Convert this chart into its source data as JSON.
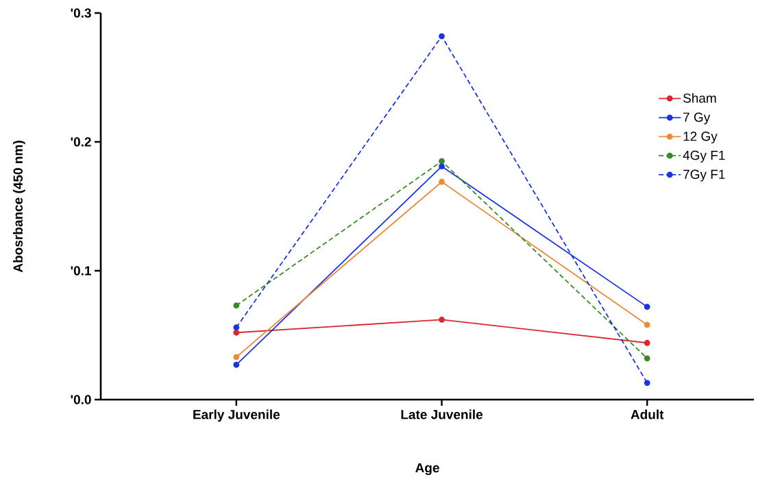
{
  "chart_data": {
    "type": "line",
    "xlabel": "Age",
    "ylabel": "Abosrbance (450 nm)",
    "categories": [
      "Early Juvenile",
      "Late Juvenile",
      "Adult"
    ],
    "ylim": [
      0,
      0.3
    ],
    "yticks": [
      {
        "value": 0.0,
        "label": "'0.0"
      },
      {
        "value": 0.1,
        "label": "'0.1"
      },
      {
        "value": 0.2,
        "label": "'0.2"
      },
      {
        "value": 0.3,
        "label": "'0.3"
      }
    ],
    "grid": false,
    "legend": "right",
    "marker": "circle",
    "series": [
      {
        "name": "Sham",
        "color": "#d9282f",
        "line_style": "solid",
        "values": [
          0.052,
          0.062,
          0.044
        ]
      },
      {
        "name": "7 Gy",
        "color": "#1a35e0",
        "line_style": "solid",
        "values": [
          0.027,
          0.181,
          0.072
        ]
      },
      {
        "name": "12 Gy",
        "color": "#ec8a3c",
        "line_style": "solid",
        "values": [
          0.033,
          0.169,
          0.058
        ]
      },
      {
        "name": "4Gy F1",
        "color": "#3a8a22",
        "line_style": "dashed",
        "values": [
          0.073,
          0.185,
          0.032
        ]
      },
      {
        "name": "7Gy F1",
        "color": "#1a35e0",
        "line_style": "dashed",
        "values": [
          0.056,
          0.282,
          0.013
        ]
      }
    ]
  }
}
